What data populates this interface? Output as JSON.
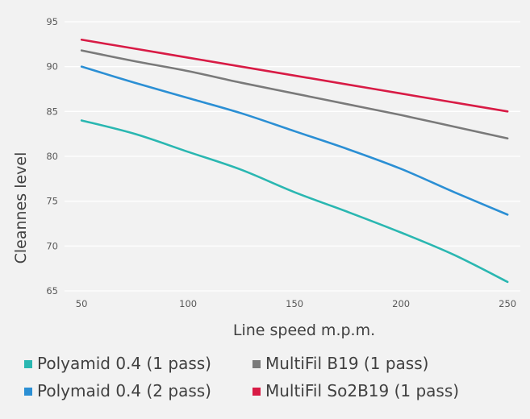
{
  "chart_data": {
    "type": "line",
    "title": "",
    "xlabel": "Line speed m.p.m.",
    "ylabel": "Cleannes level",
    "x": [
      50,
      75,
      100,
      125,
      150,
      175,
      200,
      225,
      250
    ],
    "x_ticks": [
      "50",
      "100",
      "150",
      "200",
      "250"
    ],
    "x_tick_values": [
      50,
      100,
      150,
      200,
      250
    ],
    "y_ticks": [
      "65",
      "70",
      "75",
      "80",
      "85",
      "90",
      "95"
    ],
    "y_tick_values": [
      65,
      70,
      75,
      80,
      85,
      90,
      95
    ],
    "xlim": [
      42,
      256
    ],
    "ylim": [
      65,
      95
    ],
    "grid": "horizontal",
    "legend_position": "bottom",
    "series": [
      {
        "name": "Polyamid 0.4 (1 pass)",
        "color": "#2ab7b1",
        "values": [
          84,
          82.5,
          80.5,
          78.5,
          76,
          73.8,
          71.5,
          69,
          66
        ]
      },
      {
        "name": "MultiFil B19 (1 pass)",
        "color": "#7a7a7a",
        "values": [
          91.8,
          90.6,
          89.5,
          88.2,
          87,
          85.8,
          84.6,
          83.3,
          82
        ]
      },
      {
        "name": "Polymaid 0.4 (2 pass)",
        "color": "#2b8fd4",
        "values": [
          90,
          88.2,
          86.5,
          84.8,
          82.8,
          80.8,
          78.6,
          76,
          73.5
        ]
      },
      {
        "name": "MultiFil So2B19 (1 pass)",
        "color": "#d81b45",
        "values": [
          93,
          92,
          91,
          90,
          89,
          88,
          87,
          86,
          85
        ]
      }
    ]
  }
}
